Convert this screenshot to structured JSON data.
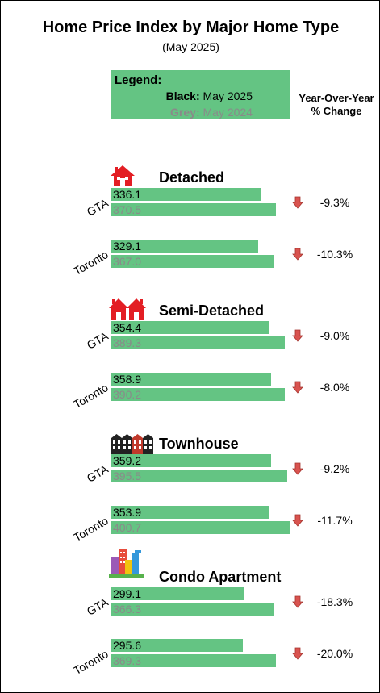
{
  "title": "Home Price Index by Major Home Type",
  "subtitle": "(May 2025)",
  "legend": {
    "heading": "Legend:",
    "black_key": "Black:",
    "black_value": "May 2025",
    "grey_key": "Grey:",
    "grey_value": "May 2024"
  },
  "yoy_header_line1": "Year-Over-Year",
  "yoy_header_line2": "% Change",
  "colors": {
    "bar": "#64c483",
    "icon_red": "#e31e24",
    "arrow": "#d9534f",
    "grey_text": "#8a8a8a"
  },
  "chart_data": {
    "type": "bar",
    "orientation": "horizontal",
    "title": "Home Price Index by Major Home Type",
    "subtitle": "(May 2025)",
    "series": [
      {
        "name": "May 2025",
        "text_color": "black"
      },
      {
        "name": "May 2024",
        "text_color": "grey"
      }
    ],
    "sections": [
      {
        "type": "Detached",
        "icon": "detached-house-icon",
        "rows": [
          {
            "label": "GTA",
            "may_2025": 336.1,
            "may_2024": 370.5,
            "may_2025_text": "336.1",
            "may_2024_text": "370.5",
            "yoy": "-9.3%",
            "direction": "down"
          },
          {
            "label": "Toronto",
            "may_2025": 329.1,
            "may_2024": 367.0,
            "may_2025_text": "329.1",
            "may_2024_text": "367.0",
            "yoy": "-10.3%",
            "direction": "down"
          }
        ]
      },
      {
        "type": "Semi-Detached",
        "icon": "semi-detached-house-icon",
        "rows": [
          {
            "label": "GTA",
            "may_2025": 354.4,
            "may_2024": 389.3,
            "may_2025_text": "354.4",
            "may_2024_text": "389.3",
            "yoy": "-9.0%",
            "direction": "down"
          },
          {
            "label": "Toronto",
            "may_2025": 358.9,
            "may_2024": 390.2,
            "may_2025_text": "358.9",
            "may_2024_text": "390.2",
            "yoy": "-8.0%",
            "direction": "down"
          }
        ]
      },
      {
        "type": "Townhouse",
        "icon": "townhouse-icon",
        "rows": [
          {
            "label": "GTA",
            "may_2025": 359.2,
            "may_2024": 395.5,
            "may_2025_text": "359.2",
            "may_2024_text": "395.5",
            "yoy": "-9.2%",
            "direction": "down"
          },
          {
            "label": "Toronto",
            "may_2025": 353.9,
            "may_2024": 400.7,
            "may_2025_text": "353.9",
            "may_2024_text": "400.7",
            "yoy": "-11.7%",
            "direction": "down"
          }
        ]
      },
      {
        "type": "Condo Apartment",
        "icon": "condo-apartment-icon",
        "rows": [
          {
            "label": "GTA",
            "may_2025": 299.1,
            "may_2024": 366.3,
            "may_2025_text": "299.1",
            "may_2024_text": "366.3",
            "yoy": "-18.3%",
            "direction": "down"
          },
          {
            "label": "Toronto",
            "may_2025": 295.6,
            "may_2024": 369.3,
            "may_2025_text": "295.6",
            "may_2024_text": "369.3",
            "yoy": "-20.0%",
            "direction": "down"
          }
        ]
      }
    ],
    "xlim": [
      0,
      410
    ],
    "grid": false
  }
}
